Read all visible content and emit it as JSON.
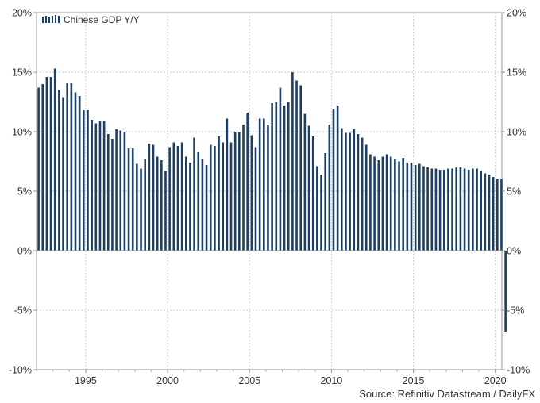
{
  "chart_data": {
    "type": "bar",
    "title": "",
    "xlabel": "",
    "ylabel": "",
    "ylim": [
      -10,
      20
    ],
    "yticks": [
      -10,
      -5,
      0,
      5,
      10,
      15,
      20
    ],
    "ytick_labels": [
      "-10%",
      "-5%",
      "0%",
      "5%",
      "10%",
      "15%",
      "20%"
    ],
    "xlim": [
      1992.0,
      2020.4
    ],
    "xticks": [
      1995,
      2000,
      2005,
      2010,
      2015,
      2020
    ],
    "xtick_labels": [
      "1995",
      "2000",
      "2005",
      "2010",
      "2015",
      "2020"
    ],
    "grid": true,
    "legend_position": "top-left",
    "start_quarter": "1992-Q1",
    "series": [
      {
        "name": "Chinese GDP Y/Y",
        "color": "#1c3f66",
        "values": [
          13.7,
          14.0,
          14.6,
          14.6,
          15.3,
          13.5,
          12.9,
          14.1,
          14.1,
          13.3,
          13.0,
          11.8,
          11.8,
          11.0,
          10.7,
          10.9,
          10.9,
          9.8,
          9.4,
          10.2,
          10.1,
          10.0,
          8.6,
          8.6,
          7.3,
          6.9,
          7.7,
          9.0,
          8.9,
          7.9,
          7.6,
          6.7,
          8.7,
          9.1,
          8.8,
          9.1,
          7.9,
          7.4,
          9.5,
          8.3,
          7.7,
          7.2,
          8.9,
          8.8,
          9.6,
          9.1,
          11.1,
          9.1,
          10.0,
          10.0,
          10.6,
          11.6,
          9.7,
          8.7,
          11.1,
          11.1,
          10.6,
          12.4,
          12.5,
          13.7,
          12.2,
          12.5,
          15.0,
          14.3,
          13.9,
          11.5,
          10.5,
          9.6,
          7.1,
          6.4,
          8.2,
          10.6,
          11.9,
          12.2,
          10.3,
          9.9,
          9.9,
          10.2,
          9.8,
          9.5,
          8.9,
          8.1,
          7.9,
          7.6,
          7.9,
          8.1,
          7.9,
          7.7,
          7.5,
          7.8,
          7.4,
          7.4,
          7.2,
          7.3,
          7.1,
          7.0,
          6.9,
          6.9,
          6.8,
          6.8,
          6.9,
          6.9,
          7.0,
          7.0,
          6.9,
          6.8,
          6.9,
          6.9,
          6.7,
          6.5,
          6.4,
          6.2,
          6.0,
          6.0,
          -6.8
        ]
      }
    ]
  },
  "source": "Source: Refinitiv Datastream / DailyFX"
}
